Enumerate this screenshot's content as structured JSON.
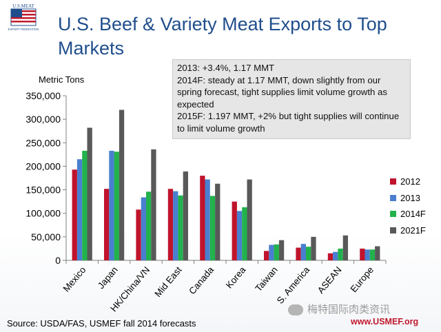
{
  "logo": {
    "text_top": "U.S.MEAT",
    "text_bottom": "EXPORT FEDERATION"
  },
  "title": "U.S. Beef & Variety Meat  Exports to Top Markets",
  "note": {
    "lines": [
      "2013: +3.4%, 1.17 MMT",
      "2014F: steady at 1.17 MMT, down slightly from our spring forecast, tight supplies limit volume growth as expected",
      "2015F: 1.197 MMT, +2% but tight supplies will continue to limit volume growth"
    ]
  },
  "source": "Source: USDA/FAS, USMEF fall 2014 forecasts",
  "watermark": "梅特国际肉类资讯",
  "website": "www.USMEF.org",
  "chart_data": {
    "type": "bar",
    "ylabel": "Metric Tons",
    "ylim": [
      0,
      350000
    ],
    "yticks": [
      "0",
      "50,000",
      "100,000",
      "150,000",
      "200,000",
      "250,000",
      "300,000",
      "350,000"
    ],
    "ytick_values": [
      0,
      50000,
      100000,
      150000,
      200000,
      250000,
      300000,
      350000
    ],
    "grid": false,
    "legend_position": "right",
    "categories": [
      "Mexico",
      "Japan",
      "HK/China/VN",
      "Mid East",
      "Canada",
      "Korea",
      "Taiwan",
      "S. America",
      "ASEAN",
      "Europe"
    ],
    "series": [
      {
        "name": "2012",
        "color": "#c0142c",
        "values": [
          193000,
          152000,
          108000,
          152000,
          180000,
          125000,
          20000,
          27000,
          15000,
          25000
        ]
      },
      {
        "name": "2013",
        "color": "#4a7fd0",
        "values": [
          215000,
          233000,
          134000,
          147000,
          172000,
          105000,
          33000,
          35000,
          18000,
          23000
        ]
      },
      {
        "name": "2014F",
        "color": "#22b24c",
        "values": [
          233000,
          231000,
          146000,
          138000,
          137000,
          113000,
          34000,
          29000,
          25000,
          23000
        ]
      },
      {
        "name": "2021F",
        "color": "#595959",
        "values": [
          282000,
          320000,
          236000,
          189000,
          163000,
          172000,
          43000,
          50000,
          53000,
          30000
        ]
      }
    ]
  }
}
